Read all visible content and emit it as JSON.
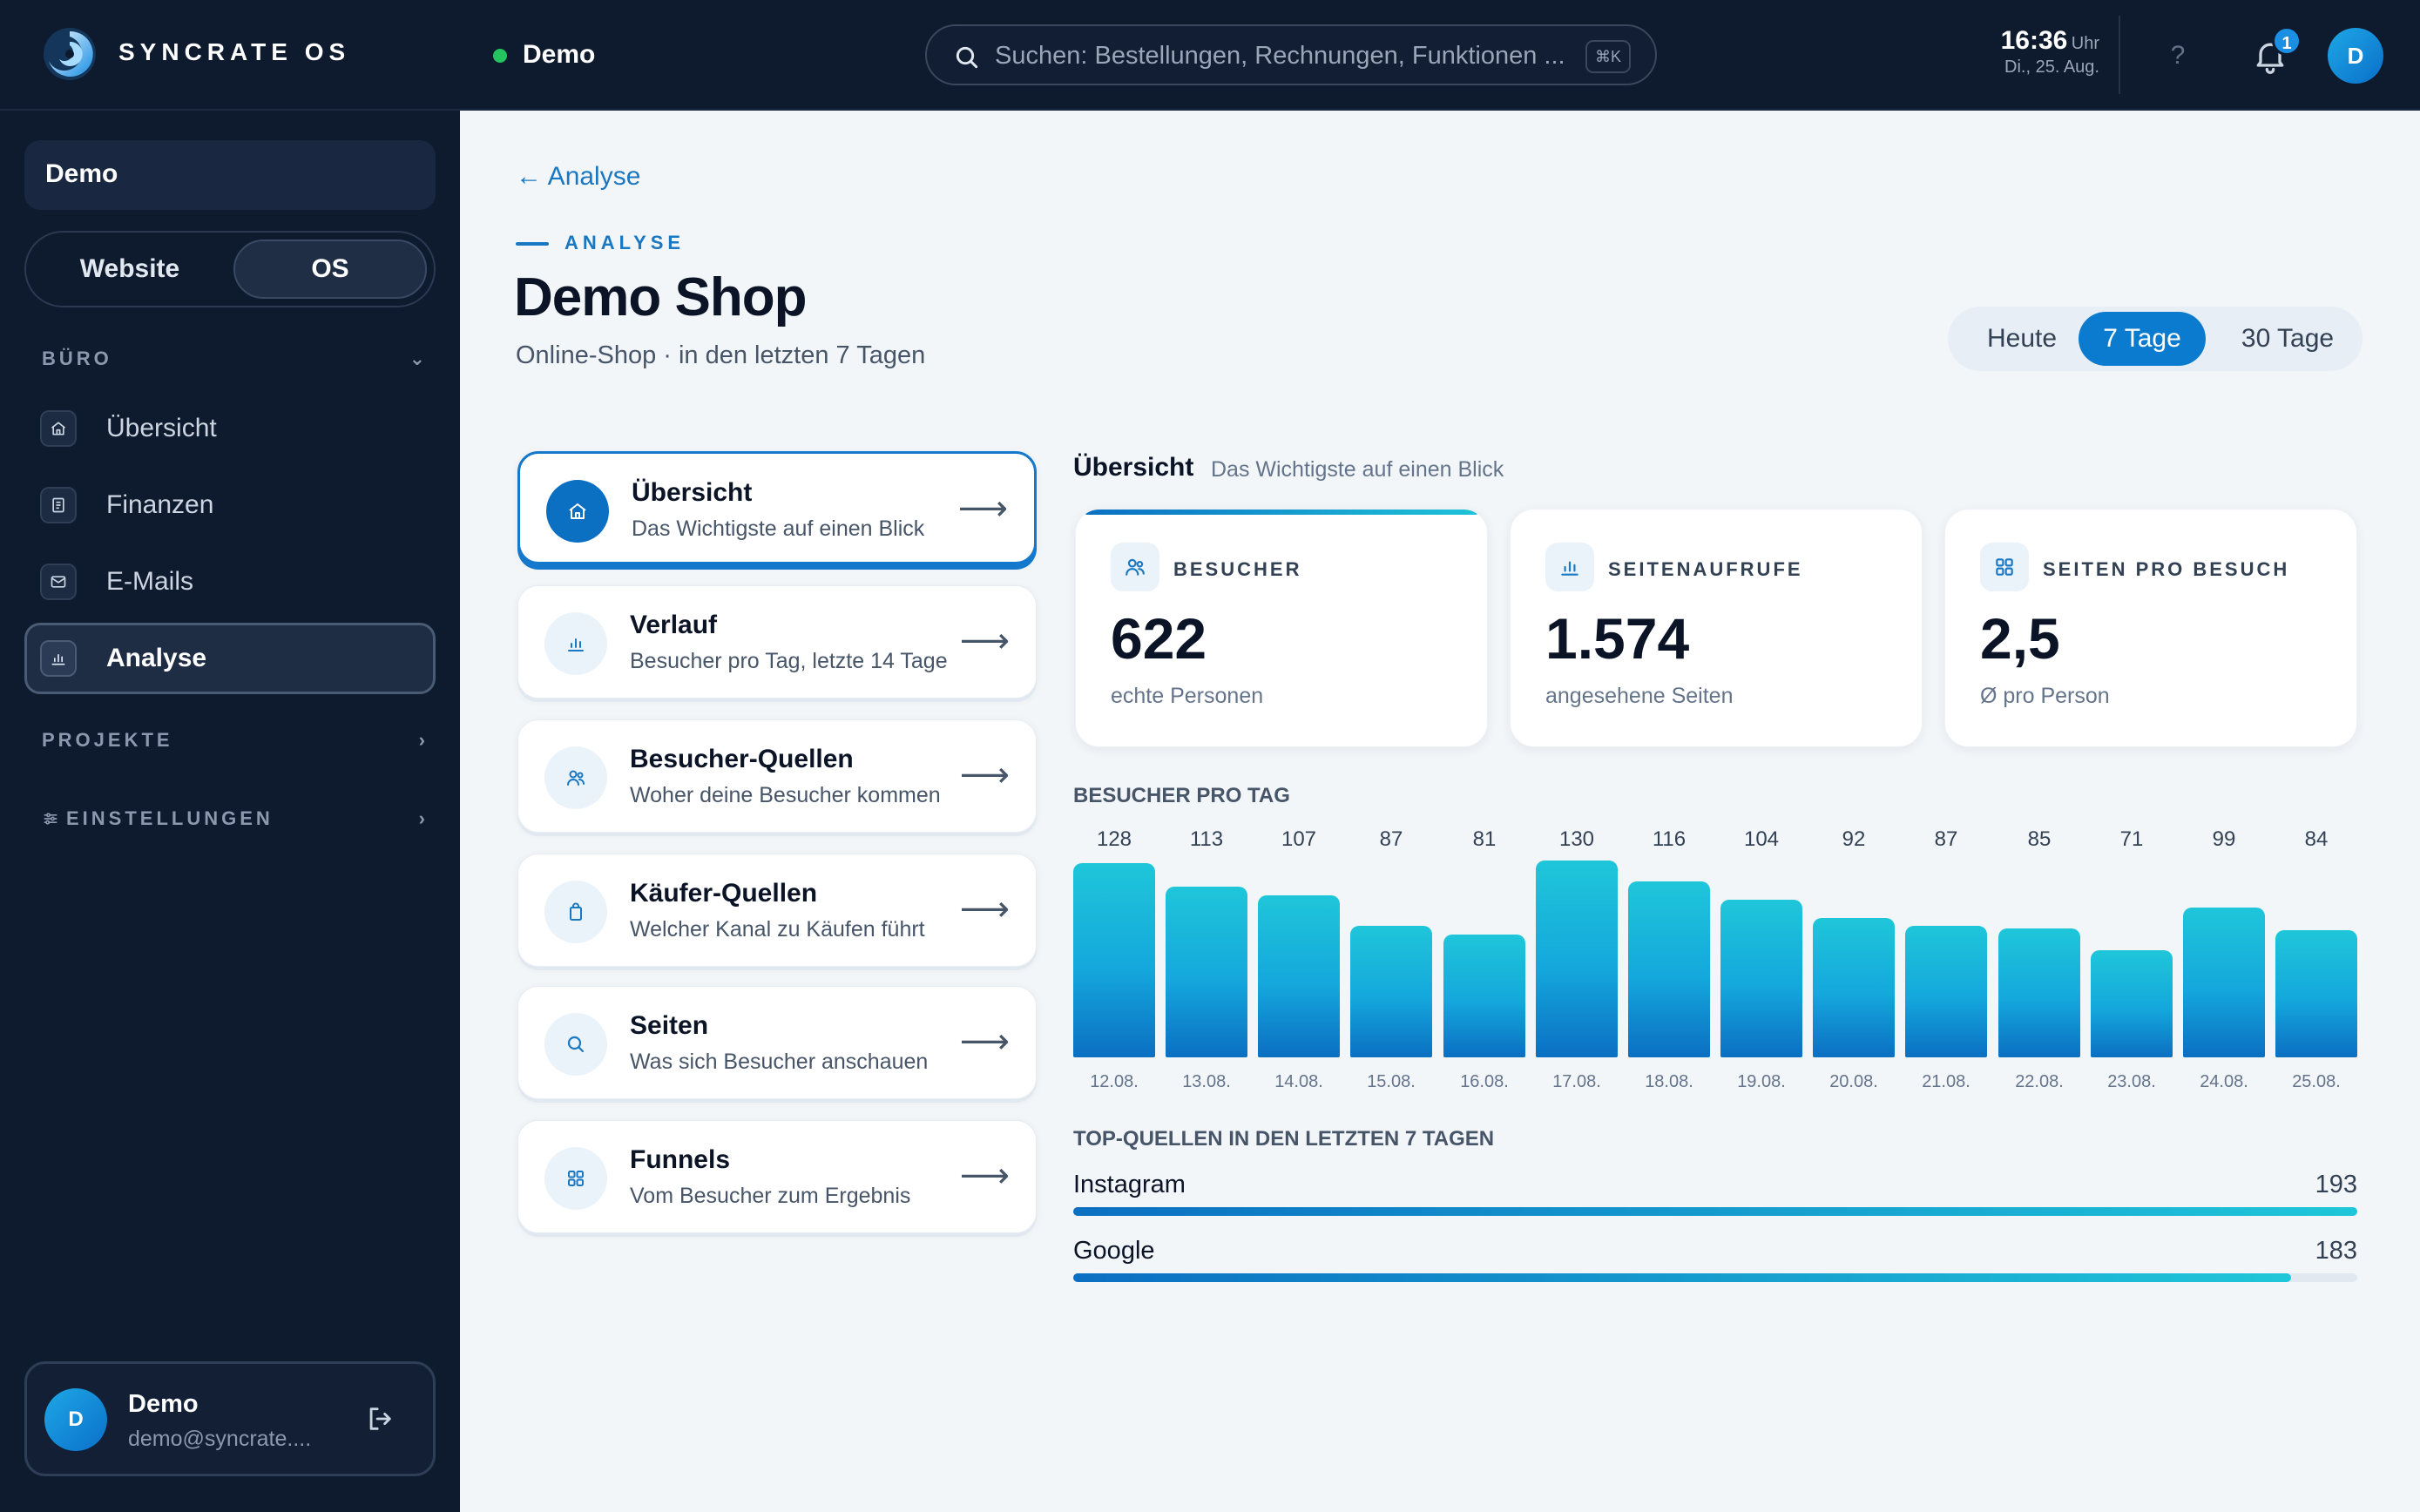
{
  "topbar": {
    "brand": "SYNCRATE OS",
    "workspace": "Demo",
    "search_placeholder": "Suchen: Bestellungen, Rechnungen, Funktionen ...",
    "search_shortcut": "⌘K",
    "time": "16:36",
    "time_unit": "Uhr",
    "date": "Di., 25. Aug.",
    "help": "?",
    "notification_count": "1",
    "avatar_initial": "D"
  },
  "sidebar": {
    "workspace": "Demo",
    "toggle": {
      "website": "Website",
      "os": "OS",
      "selected": "OS"
    },
    "section_buero": "BÜRO",
    "items": [
      {
        "label": "Übersicht",
        "icon": "home-icon"
      },
      {
        "label": "Finanzen",
        "icon": "receipt-icon"
      },
      {
        "label": "E-Mails",
        "icon": "mail-icon"
      },
      {
        "label": "Analyse",
        "icon": "bar-chart-icon",
        "active": true
      }
    ],
    "section_projekte": "PROJEKTE",
    "section_einstellungen": "EINSTELLUNGEN",
    "user": {
      "initial": "D",
      "name": "Demo",
      "email": "demo@syncrate...."
    }
  },
  "main": {
    "back_link": "← Analyse",
    "eyebrow": "ANALYSE",
    "title": "Demo Shop",
    "subtitle": "Online-Shop · in den letzten 7 Tagen",
    "ranges": [
      "Heute",
      "7 Tage",
      "30 Tage"
    ],
    "selected_range": "7 Tage",
    "menu": [
      {
        "title": "Übersicht",
        "sub": "Das Wichtigste auf einen Blick",
        "icon": "home-icon",
        "active": true
      },
      {
        "title": "Verlauf",
        "sub": "Besucher pro Tag, letzte 14 Tage",
        "icon": "bar-chart-icon"
      },
      {
        "title": "Besucher-Quellen",
        "sub": "Woher deine Besucher kommen",
        "icon": "users-icon"
      },
      {
        "title": "Käufer-Quellen",
        "sub": "Welcher Kanal zu Käufen führt",
        "icon": "shopping-bag-icon"
      },
      {
        "title": "Seiten",
        "sub": "Was sich Besucher anschauen",
        "icon": "search-icon"
      },
      {
        "title": "Funnels",
        "sub": "Vom Besucher zum Ergebnis",
        "icon": "grid-icon"
      }
    ],
    "overview_title": "Übersicht",
    "overview_sub": "Das Wichtigste auf einen Blick",
    "kpis": [
      {
        "label": "BESUCHER",
        "value": "622",
        "sub": "echte Personen",
        "icon": "users-icon"
      },
      {
        "label": "SEITENAUFRUFE",
        "value": "1.574",
        "sub": "angesehene Seiten",
        "icon": "bar-chart-icon"
      },
      {
        "label": "SEITEN PRO BESUCH",
        "value": "2,5",
        "sub": "Ø pro Person",
        "icon": "grid-icon"
      }
    ],
    "sources_title": "TOP-QUELLEN IN DEN LETZTEN 7 TAGEN",
    "sources": [
      {
        "name": "Instagram",
        "value": 193
      },
      {
        "name": "Google",
        "value": 183
      }
    ]
  },
  "chart_data": {
    "type": "bar",
    "title": "BESUCHER PRO TAG",
    "categories": [
      "12.08.",
      "13.08.",
      "14.08.",
      "15.08.",
      "16.08.",
      "17.08.",
      "18.08.",
      "19.08.",
      "20.08.",
      "21.08.",
      "22.08.",
      "23.08.",
      "24.08.",
      "25.08."
    ],
    "values": [
      128,
      113,
      107,
      87,
      81,
      130,
      116,
      104,
      92,
      87,
      85,
      71,
      99,
      84
    ],
    "ylim": [
      0,
      130
    ],
    "colors": {
      "top": "#1fc6d9",
      "bottom": "#0b6fc2"
    }
  }
}
